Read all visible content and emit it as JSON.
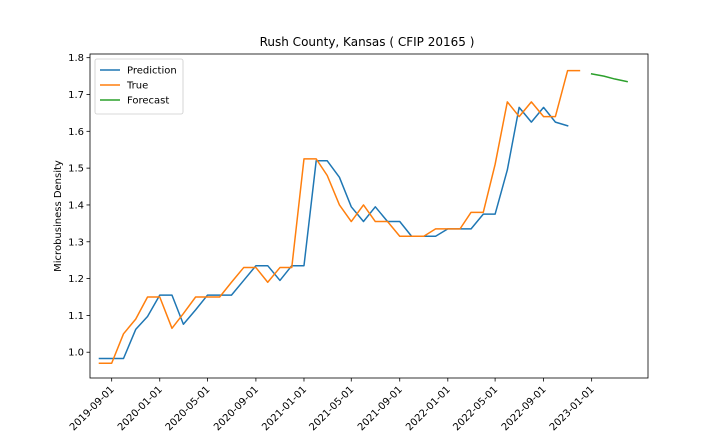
{
  "chart_data": {
    "type": "line",
    "title": "Rush County, Kansas ( CFIP 20165 )",
    "xlabel": "",
    "ylabel": "Microbusiness Density",
    "x_ticks": [
      "2019-09-01",
      "2020-01-01",
      "2020-05-01",
      "2020-09-01",
      "2021-01-01",
      "2021-05-01",
      "2021-09-01",
      "2022-01-01",
      "2022-05-01",
      "2022-09-01",
      "2023-01-01"
    ],
    "y_ticks": [
      "1.0",
      "1.1",
      "1.2",
      "1.3",
      "1.4",
      "1.5",
      "1.6",
      "1.7",
      "1.8"
    ],
    "ylim": [
      0.93,
      1.81
    ],
    "xlim": [
      "2019-07-08",
      "2023-05-24"
    ],
    "grid": false,
    "legend_position": "top-left",
    "series": [
      {
        "name": "Prediction",
        "color": "#1f77b4",
        "x": [
          "2019-08-01",
          "2019-09-01",
          "2019-10-01",
          "2019-11-01",
          "2019-12-01",
          "2020-01-01",
          "2020-02-01",
          "2020-03-01",
          "2020-04-01",
          "2020-05-01",
          "2020-06-01",
          "2020-07-01",
          "2020-08-01",
          "2020-09-01",
          "2020-10-01",
          "2020-11-01",
          "2020-12-01",
          "2021-01-01",
          "2021-02-01",
          "2021-03-01",
          "2021-04-01",
          "2021-05-01",
          "2021-06-01",
          "2021-07-01",
          "2021-08-01",
          "2021-09-01",
          "2021-10-01",
          "2021-11-01",
          "2021-12-01",
          "2022-01-01",
          "2022-02-01",
          "2022-03-01",
          "2022-04-01",
          "2022-05-01",
          "2022-06-01",
          "2022-07-01",
          "2022-08-01",
          "2022-09-01",
          "2022-10-01",
          "2022-11-01"
        ],
        "values": [
          0.983,
          0.983,
          0.983,
          1.062,
          1.097,
          1.155,
          1.155,
          1.076,
          1.115,
          1.155,
          1.155,
          1.155,
          1.195,
          1.235,
          1.235,
          1.195,
          1.235,
          1.235,
          1.52,
          1.52,
          1.475,
          1.395,
          1.355,
          1.395,
          1.355,
          1.355,
          1.315,
          1.315,
          1.315,
          1.335,
          1.335,
          1.335,
          1.375,
          1.375,
          1.495,
          1.665,
          1.625,
          1.665,
          1.625,
          1.615
        ]
      },
      {
        "name": "True",
        "color": "#ff7f0e",
        "x": [
          "2019-08-01",
          "2019-09-01",
          "2019-10-01",
          "2019-11-01",
          "2019-12-01",
          "2020-01-01",
          "2020-02-01",
          "2020-03-01",
          "2020-04-01",
          "2020-05-01",
          "2020-06-01",
          "2020-07-01",
          "2020-08-01",
          "2020-09-01",
          "2020-10-01",
          "2020-11-01",
          "2020-12-01",
          "2021-01-01",
          "2021-02-01",
          "2021-03-01",
          "2021-04-01",
          "2021-05-01",
          "2021-06-01",
          "2021-07-01",
          "2021-08-01",
          "2021-09-01",
          "2021-10-01",
          "2021-11-01",
          "2021-12-01",
          "2022-01-01",
          "2022-02-01",
          "2022-03-01",
          "2022-04-01",
          "2022-05-01",
          "2022-06-01",
          "2022-07-01",
          "2022-08-01",
          "2022-09-01",
          "2022-10-01",
          "2022-11-01",
          "2022-12-01"
        ],
        "values": [
          0.97,
          0.97,
          1.05,
          1.09,
          1.15,
          1.15,
          1.065,
          1.105,
          1.15,
          1.15,
          1.15,
          1.19,
          1.23,
          1.23,
          1.19,
          1.23,
          1.23,
          1.525,
          1.525,
          1.48,
          1.4,
          1.355,
          1.4,
          1.355,
          1.355,
          1.315,
          1.315,
          1.315,
          1.335,
          1.335,
          1.335,
          1.38,
          1.38,
          1.51,
          1.68,
          1.64,
          1.68,
          1.64,
          1.64,
          1.765,
          1.765
        ]
      },
      {
        "name": "Forecast",
        "color": "#2ca02c",
        "x": [
          "2023-01-01",
          "2023-02-01",
          "2023-03-01",
          "2023-04-01"
        ],
        "values": [
          1.756,
          1.75,
          1.742,
          1.735
        ]
      }
    ]
  }
}
